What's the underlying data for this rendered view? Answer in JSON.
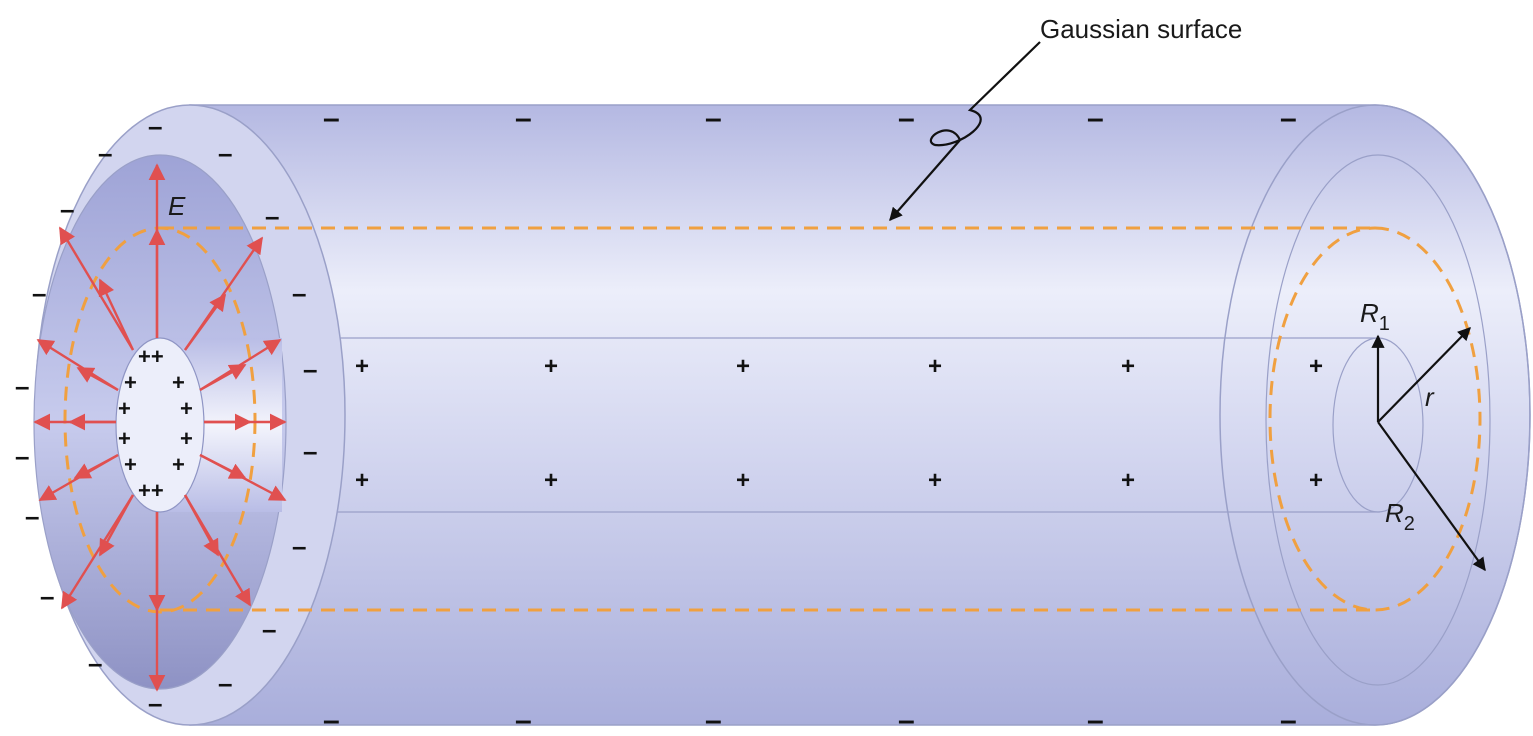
{
  "labels": {
    "gaussian": "Gaussian surface",
    "field": "E",
    "r1_main": "R",
    "r1_sub": "1",
    "r2_main": "R",
    "r2_sub": "2",
    "r": "r"
  },
  "signs": {
    "positive": "+",
    "negative": "–",
    "double_positive": "++"
  },
  "colors": {
    "cylinder": "#b9bde6",
    "cylinder_light": "#e9ebf9",
    "rim": "#d2d5ef",
    "cavity": "#9ea3d6",
    "field_arrow": "#e05050",
    "gaussian": "#f0a040",
    "outline": "#9aa0c8"
  }
}
